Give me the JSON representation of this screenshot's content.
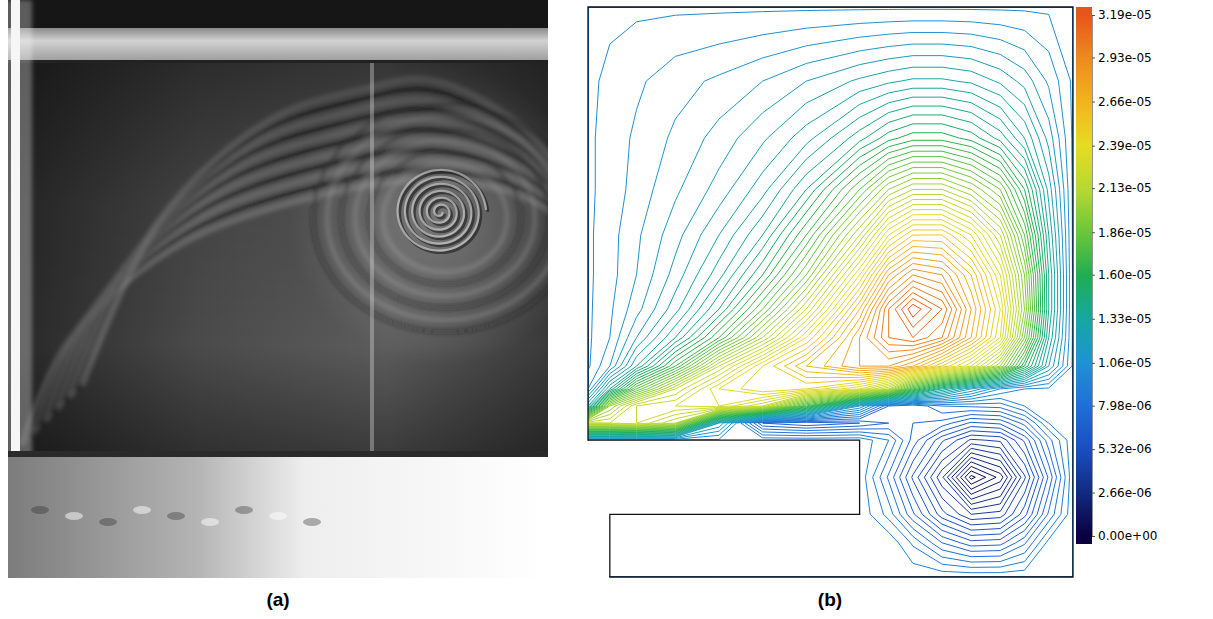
{
  "chart_data": {
    "type": "contour",
    "panel_labels": [
      "(a)",
      "(b)"
    ],
    "tick_labels": false,
    "xlim": [
      0,
      1
    ],
    "ylim": [
      0,
      1
    ],
    "x": [
      0,
      0.045,
      0.1,
      0.18,
      0.27,
      0.36,
      0.45,
      0.56,
      0.62,
      0.67,
      0.73,
      0.79,
      0.85,
      0.9,
      0.95,
      1
    ],
    "y": [
      0,
      0.06,
      0.11,
      0.175,
      0.24,
      0.27,
      0.3,
      0.33,
      0.37,
      0.42,
      0.47,
      0.53,
      0.6,
      0.68,
      0.77,
      0.87,
      1
    ],
    "z": [
      [
        9.9e-06,
        9.9e-06,
        9.9e-06,
        9.9e-06,
        9.9e-06,
        9.9e-06,
        9.9e-06,
        9.9e-06,
        9.9e-06,
        9.9e-06,
        9.9e-06,
        9.9e-06,
        9.9e-06,
        9.9e-06,
        9.9e-06,
        9.9e-06
      ],
      [
        9.9e-06,
        9.9e-06,
        9.9e-06,
        9.9e-06,
        9.9e-06,
        9.9e-06,
        9.9e-06,
        9.9e-06,
        9.9e-06,
        8.9e-06,
        7.5e-06,
        6.7e-06,
        6.8e-06,
        7.9e-06,
        9.7e-06,
        9.9e-06
      ],
      [
        9.9e-06,
        9.9e-06,
        9.9e-06,
        9.9e-06,
        9.9e-06,
        9.9e-06,
        9.9e-06,
        9.9e-06,
        8.8e-06,
        7.1e-06,
        5.2e-06,
        4e-06,
        4.2e-06,
        5.8e-06,
        8.1e-06,
        9.9e-06
      ],
      [
        9.9e-06,
        9.9e-06,
        9.9e-06,
        9.9e-06,
        9.9e-06,
        9.9e-06,
        9.9e-06,
        9.9e-06,
        7.9e-06,
        5.9e-06,
        3.6e-06,
        3e-07,
        1.7e-06,
        4.4e-06,
        7.1e-06,
        9.9e-06
      ],
      [
        9.9e-06,
        9.9e-06,
        9.9e-06,
        9.9e-06,
        9.9e-06,
        9.9e-06,
        9.9e-06,
        9.9e-06,
        9e-06,
        7.3e-06,
        5.6e-06,
        4.4e-06,
        4.6e-06,
        6.1e-06,
        8.3e-06,
        9.9e-06
      ],
      [
        2.2e-05,
        2.2e-05,
        2.25e-05,
        2.1e-05,
        1.2e-05,
        7e-06,
        6.5e-06,
        7e-06,
        7.5e-06,
        7.5e-06,
        7.3e-06,
        6.4e-06,
        6.6e-06,
        7.7e-06,
        9.5e-06,
        9.9e-06
      ],
      [
        1.3e-05,
        2e-05,
        2.25e-05,
        2.3e-05,
        2.35e-05,
        2.2e-05,
        1.7e-05,
        1.1e-05,
        8e-06,
        7.5e-06,
        8.5e-06,
        8.6e-06,
        8.7e-06,
        9.5e-06,
        9.9e-06,
        9.9e-06
      ],
      [
        1.05e-05,
        1.4e-05,
        1.8e-05,
        2.15e-05,
        2.4e-05,
        2.5e-05,
        2.45e-05,
        2.3e-05,
        2.1e-05,
        1.7e-05,
        1.4e-05,
        1.2e-05,
        1.05e-05,
        1e-05,
        9.9e-06,
        9.9e-06
      ],
      [
        9.9e-06,
        1.1e-05,
        1.35e-05,
        1.7e-05,
        2.15e-05,
        2.45e-05,
        2.65e-05,
        2.8e-05,
        2.8e-05,
        2.7e-05,
        2.5e-05,
        2.3e-05,
        2e-05,
        1.6e-05,
        1.25e-05,
        9.9e-06
      ],
      [
        9.9e-06,
        1.05e-05,
        1.2e-05,
        1.4e-05,
        1.7e-05,
        2.05e-05,
        2.4e-05,
        2.8e-05,
        3e-05,
        3.05e-05,
        2.95e-05,
        2.7e-05,
        2.4e-05,
        1.9e-05,
        1.35e-05,
        9.9e-06
      ],
      [
        9.9e-06,
        1.04e-05,
        1.13e-05,
        1.28e-05,
        1.5e-05,
        1.8e-05,
        2.15e-05,
        2.65e-05,
        3e-05,
        3.19e-05,
        3.05e-05,
        2.75e-05,
        2.45e-05,
        2e-05,
        1.4e-05,
        9.9e-06
      ],
      [
        9.9e-06,
        1.03e-05,
        1.1e-05,
        1.22e-05,
        1.38e-05,
        1.6e-05,
        1.9e-05,
        2.4e-05,
        2.75e-05,
        2.9e-05,
        2.85e-05,
        2.65e-05,
        2.35e-05,
        1.95e-05,
        1.4e-05,
        9.9e-06
      ],
      [
        9.9e-06,
        1.03e-05,
        1.09e-05,
        1.18e-05,
        1.3e-05,
        1.45e-05,
        1.7e-05,
        2.1e-05,
        2.4e-05,
        2.55e-05,
        2.55e-05,
        2.4e-05,
        2.15e-05,
        1.8e-05,
        1.35e-05,
        9.9e-06
      ],
      [
        9.9e-06,
        1.02e-05,
        1.07e-05,
        1.14e-05,
        1.22e-05,
        1.33e-05,
        1.5e-05,
        1.8e-05,
        2e-05,
        2.1e-05,
        2.1e-05,
        2e-05,
        1.85e-05,
        1.6e-05,
        1.28e-05,
        9.9e-06
      ],
      [
        9.9e-06,
        1.02e-05,
        1.06e-05,
        1.11e-05,
        1.17e-05,
        1.24e-05,
        1.33e-05,
        1.48e-05,
        1.58e-05,
        1.63e-05,
        1.63e-05,
        1.58e-05,
        1.48e-05,
        1.35e-05,
        1.18e-05,
        9.9e-06
      ],
      [
        9.9e-06,
        1.01e-05,
        1.04e-05,
        1.08e-05,
        1.11e-05,
        1.15e-05,
        1.2e-05,
        1.26e-05,
        1.29e-05,
        1.31e-05,
        1.31e-05,
        1.29e-05,
        1.24e-05,
        1.18e-05,
        1.09e-05,
        9.9e-06
      ],
      [
        9.9e-06,
        9.9e-06,
        9.9e-06,
        9.9e-06,
        9.9e-06,
        9.9e-06,
        9.9e-06,
        9.9e-06,
        9.9e-06,
        9.9e-06,
        9.9e-06,
        9.9e-06,
        9.9e-06,
        9.9e-06,
        9.9e-06,
        9.9e-06
      ]
    ],
    "levels": [
      5e-07,
      1e-06,
      1.5e-06,
      2e-06,
      2.5e-06,
      3e-06,
      3.5e-06,
      4e-06,
      4.5e-06,
      5e-06,
      5.5e-06,
      6e-06,
      6.5e-06,
      7e-06,
      7.5e-06,
      8e-06,
      8.5e-06,
      9e-06,
      9.5e-06,
      1e-05,
      1.05e-05,
      1.1e-05,
      1.15e-05,
      1.2e-05,
      1.25e-05,
      1.3e-05,
      1.35e-05,
      1.4e-05,
      1.45e-05,
      1.5e-05,
      1.55e-05,
      1.6e-05,
      1.65e-05,
      1.7e-05,
      1.75e-05,
      1.8e-05,
      1.85e-05,
      1.9e-05,
      1.95e-05,
      2e-05,
      2.05e-05,
      2.1e-05,
      2.15e-05,
      2.2e-05,
      2.25e-05,
      2.3e-05,
      2.35e-05,
      2.4e-05,
      2.45e-05,
      2.5e-05,
      2.55e-05,
      2.6e-05,
      2.65e-05,
      2.7e-05,
      2.75e-05,
      2.8e-05,
      2.85e-05,
      2.9e-05,
      2.95e-05,
      3e-05,
      3.05e-05,
      3.1e-05,
      3.15e-05
    ],
    "boundary": [
      [
        0,
        1
      ],
      [
        1,
        1
      ],
      [
        1,
        0
      ],
      [
        0.045,
        0
      ],
      [
        0.045,
        0.11
      ],
      [
        0.56,
        0.11
      ],
      [
        0.56,
        0.24
      ],
      [
        0,
        0.24
      ]
    ],
    "colorbar": {
      "range": [
        0,
        3.19e-05
      ],
      "ticks": [
        {
          "value": 3.19e-05,
          "label": "3.19e-05"
        },
        {
          "value": 2.93e-05,
          "label": "2.93e-05"
        },
        {
          "value": 2.66e-05,
          "label": "2.66e-05"
        },
        {
          "value": 2.39e-05,
          "label": "2.39e-05"
        },
        {
          "value": 2.13e-05,
          "label": "2.13e-05"
        },
        {
          "value": 1.86e-05,
          "label": "1.86e-05"
        },
        {
          "value": 1.6e-05,
          "label": "1.60e-05"
        },
        {
          "value": 1.33e-05,
          "label": "1.33e-05"
        },
        {
          "value": 1.06e-05,
          "label": "1.06e-05"
        },
        {
          "value": 7.98e-06,
          "label": "7.98e-06"
        },
        {
          "value": 5.32e-06,
          "label": "5.32e-06"
        },
        {
          "value": 2.66e-06,
          "label": "2.66e-06"
        },
        {
          "value": 0,
          "label": "0.00e+00"
        }
      ]
    }
  }
}
